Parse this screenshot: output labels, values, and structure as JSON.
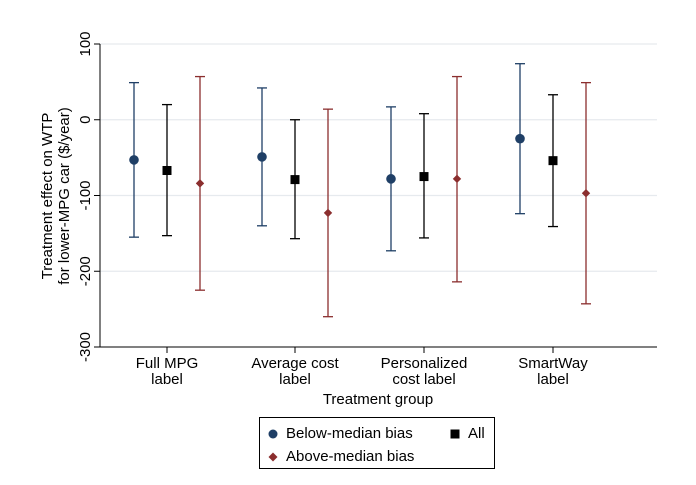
{
  "chart_data": {
    "type": "scatter",
    "subtype": "point-estimates-with-confidence-intervals",
    "xlabel": "Treatment group",
    "ylabel_lines": [
      "Treatment effect on WTP",
      "for lower-MPG car ($/year)"
    ],
    "categories": [
      [
        "Full MPG",
        "label"
      ],
      [
        "Average cost",
        "label"
      ],
      [
        "Personalized",
        "cost label"
      ],
      [
        "SmartWay",
        "label"
      ]
    ],
    "yticks": [
      100,
      0,
      -100,
      -200,
      -300
    ],
    "ylim": [
      -300,
      100
    ],
    "grid": true,
    "legend_position": "bottom-center",
    "series": [
      {
        "name": "Below-median bias",
        "color": "#1f3f66",
        "marker": "circle",
        "points": [
          {
            "y": -53,
            "lo": -155,
            "hi": 49
          },
          {
            "y": -49,
            "lo": -140,
            "hi": 42
          },
          {
            "y": -78,
            "lo": -173,
            "hi": 17
          },
          {
            "y": -25,
            "lo": -124,
            "hi": 74
          }
        ]
      },
      {
        "name": "All",
        "color": "#000000",
        "marker": "square",
        "points": [
          {
            "y": -67,
            "lo": -153,
            "hi": 20
          },
          {
            "y": -79,
            "lo": -157,
            "hi": 0
          },
          {
            "y": -75,
            "lo": -156,
            "hi": 8
          },
          {
            "y": -54,
            "lo": -141,
            "hi": 33
          }
        ]
      },
      {
        "name": "Above-median bias",
        "color": "#8b2e2e",
        "marker": "diamond",
        "points": [
          {
            "y": -84,
            "lo": -225,
            "hi": 57
          },
          {
            "y": -123,
            "lo": -260,
            "hi": 14
          },
          {
            "y": -78,
            "lo": -214,
            "hi": 57
          },
          {
            "y": -97,
            "lo": -243,
            "hi": 49
          }
        ]
      }
    ]
  }
}
